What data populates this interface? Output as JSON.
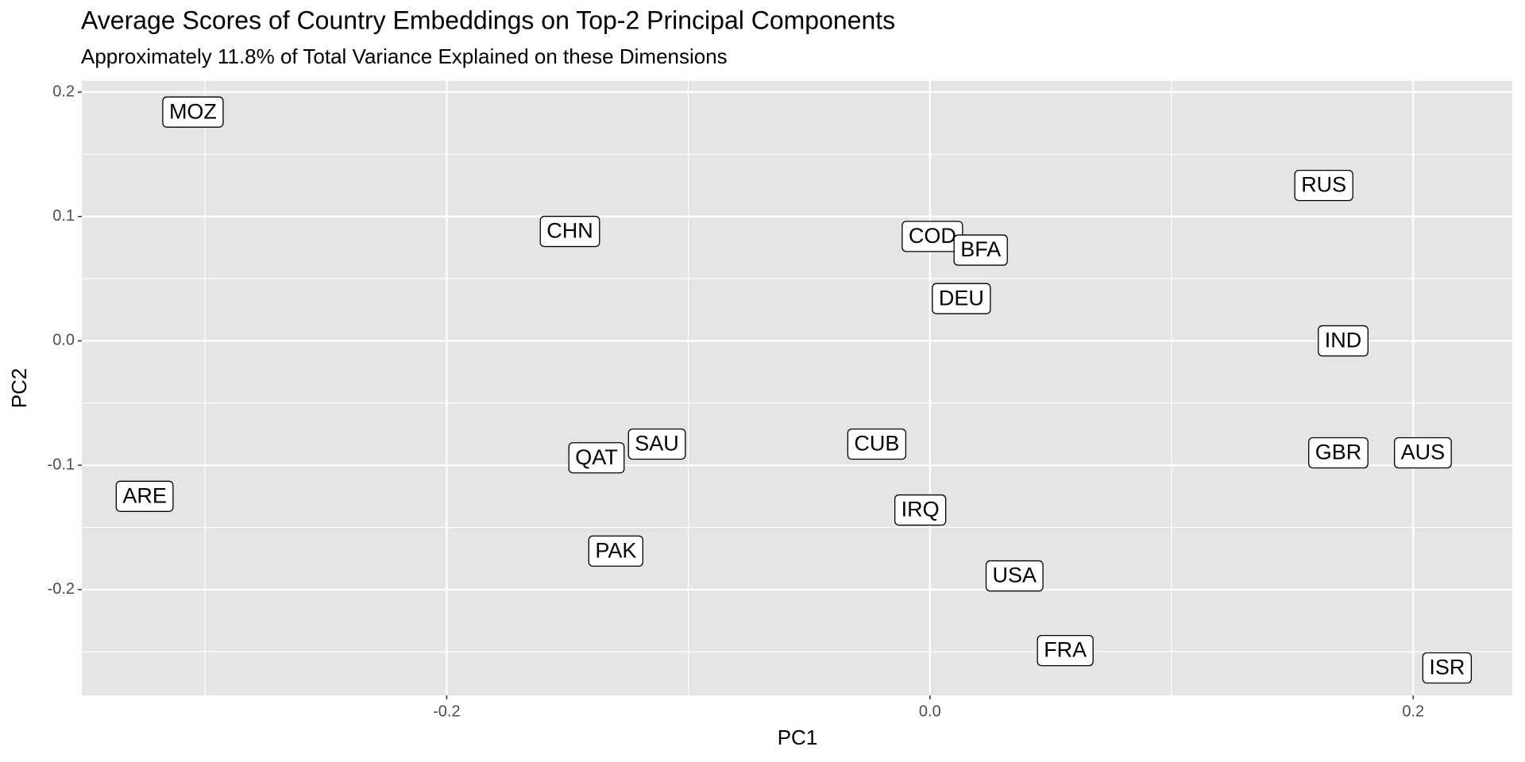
{
  "chart_data": {
    "type": "scatter",
    "title": "Average Scores of Country Embeddings on Top-2 Principal Components",
    "subtitle": "Approximately 11.8% of Total Variance Explained on these Dimensions",
    "x_label": "PC1",
    "y_label": "PC2",
    "labels": [
      "MOZ",
      "CHN",
      "COD",
      "BFA",
      "DEU",
      "RUS",
      "IND",
      "CUB",
      "SAU",
      "QAT",
      "ARE",
      "GBR",
      "AUS",
      "IRQ",
      "PAK",
      "USA",
      "FRA",
      "ISR"
    ],
    "x": [
      -0.305,
      -0.149,
      0.001,
      0.021,
      0.013,
      0.163,
      0.171,
      -0.022,
      -0.113,
      -0.138,
      -0.325,
      0.169,
      0.204,
      -0.004,
      -0.13,
      0.035,
      0.056,
      0.214
    ],
    "values": [
      0.184,
      0.088,
      0.084,
      0.073,
      0.034,
      0.125,
      0.0,
      -0.083,
      -0.083,
      -0.094,
      -0.125,
      -0.09,
      -0.09,
      -0.136,
      -0.169,
      -0.189,
      -0.249,
      -0.263
    ],
    "xlim": [
      -0.351,
      0.241
    ],
    "ylim": [
      -0.285,
      0.209
    ],
    "xticks": [
      -0.2,
      {
        "value": 0,
        "label": "0.0"
      },
      0.2
    ],
    "yticks": [
      -0.2,
      -0.1,
      {
        "value": 0,
        "label": "0.0"
      },
      0.1,
      0.2
    ],
    "grid": true
  }
}
